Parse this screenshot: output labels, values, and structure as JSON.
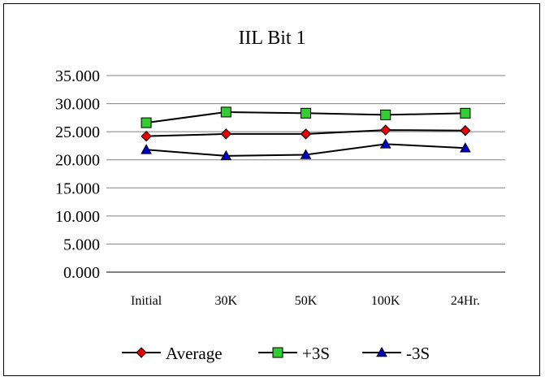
{
  "chart_data": {
    "type": "line",
    "title": "IIL Bit 1",
    "categories": [
      "Initial",
      "30K",
      "50K",
      "100K",
      "24Hr."
    ],
    "ylim": [
      0,
      35
    ],
    "yticks": [
      "0.000",
      "5.000",
      "10.000",
      "15.000",
      "20.000",
      "25.000",
      "30.000",
      "35.000"
    ],
    "ytick_values": [
      0,
      5,
      10,
      15,
      20,
      25,
      30,
      35
    ],
    "grid": true,
    "legend_position": "bottom",
    "series": [
      {
        "name": "Average",
        "values": [
          24.2,
          24.6,
          24.6,
          25.3,
          25.2
        ],
        "color": "#e60000",
        "marker": "diamond"
      },
      {
        "name": "+3S",
        "values": [
          26.6,
          28.5,
          28.3,
          28.0,
          28.3
        ],
        "color": "#33cc33",
        "marker": "square"
      },
      {
        "name": "-3S",
        "values": [
          21.8,
          20.7,
          20.9,
          22.8,
          22.1
        ],
        "color": "#0000cc",
        "marker": "triangle"
      }
    ]
  }
}
